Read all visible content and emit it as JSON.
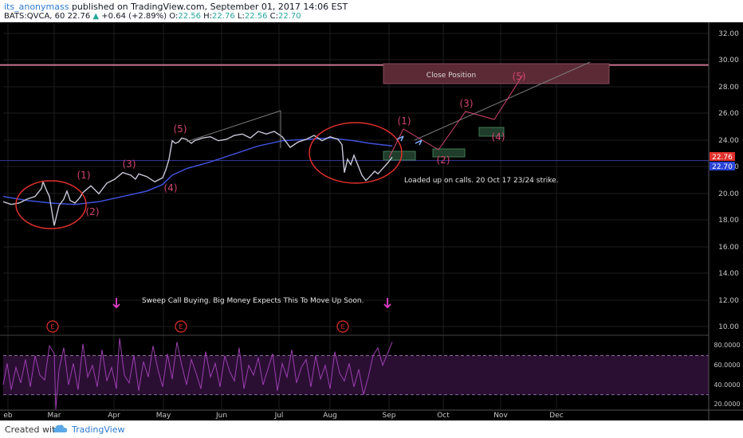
{
  "header": {
    "author": "its_anonymass",
    "published": "published on TradingView.com, September 01, 2017 14:06 EST",
    "symbol": "BATS:QVCA, 60",
    "last": "22.76",
    "change": "+0.64 (+2.89%)",
    "open_label": "O:",
    "open": "22.56",
    "high_label": "H:",
    "high": "22.76",
    "low_label": "L:",
    "low": "22.56",
    "close_label": "C:",
    "close": "22.70"
  },
  "footer": {
    "created_with": "Created with",
    "brand": "TradingView"
  },
  "colors": {
    "background": "#000000",
    "grid": "#1e1e1e",
    "axis_text": "#c8c8c8",
    "ma": "#3f51d9",
    "annotation": "#e0302c",
    "wave": "#d1446f",
    "rsi": "#9c3fb0",
    "resistance": "#c9738f",
    "support": "#3a3aa0",
    "projection": "#7a7a7a",
    "arrow_blue": "#7fb2ff",
    "marker": "#e040c8"
  },
  "chart_data": {
    "type": "line",
    "symbol": "BATS:QVCA",
    "interval": "60",
    "y_ticks": [
      "32.00",
      "30.00",
      "28.00",
      "26.00",
      "24.00",
      "22.00",
      "20.00",
      "18.00",
      "16.00",
      "14.00",
      "12.00",
      "10.00"
    ],
    "ylim": [
      9.4,
      32.8
    ],
    "x_ticks": [
      "eb",
      "Mar",
      "Apr",
      "May",
      "Jun",
      "Jul",
      "Aug",
      "Sep",
      "Oct",
      "Nov",
      "Dec"
    ],
    "price_labels": {
      "last": "22.76",
      "close": "22.70"
    },
    "resistance_level": 29.7,
    "support_level": 22.5,
    "series": [
      {
        "name": "price",
        "x": [
          0,
          10,
          20,
          30,
          40,
          48,
          50,
          54,
          58,
          64,
          70,
          76,
          80,
          84,
          90,
          96,
          100,
          110,
          120,
          130,
          140,
          150,
          160,
          166,
          170,
          180,
          190,
          200,
          204,
          208,
          212,
          216,
          220,
          224,
          230,
          236,
          240,
          250,
          260,
          270,
          280,
          290,
          300,
          310,
          320,
          330,
          340,
          350,
          360,
          370,
          380,
          390,
          400,
          410,
          420,
          425,
          428,
          432,
          436,
          440,
          446,
          450,
          455,
          460,
          466,
          470,
          476,
          482,
          488
        ],
        "values": [
          19.4,
          19.2,
          19.3,
          19.6,
          19.8,
          20.4,
          20.9,
          20.3,
          19.8,
          17.6,
          19.1,
          19.6,
          20.2,
          19.5,
          19.3,
          19.7,
          20.1,
          20.6,
          20.0,
          20.8,
          21.1,
          21.6,
          21.4,
          21.1,
          21.5,
          21.3,
          20.9,
          21.2,
          21.8,
          22.6,
          24.0,
          23.8,
          23.9,
          24.2,
          24.1,
          23.8,
          24.0,
          24.2,
          24.3,
          24.0,
          24.1,
          24.4,
          24.5,
          24.2,
          24.7,
          24.5,
          24.7,
          24.3,
          23.5,
          23.9,
          24.1,
          24.4,
          24.0,
          24.3,
          24.1,
          23.7,
          21.6,
          22.6,
          22.2,
          22.9,
          22.0,
          21.4,
          21.0,
          21.3,
          21.7,
          21.5,
          21.9,
          22.3,
          22.76
        ]
      },
      {
        "name": "ma",
        "x": [
          0,
          30,
          60,
          90,
          120,
          150,
          180,
          200,
          212,
          230,
          260,
          290,
          320,
          350,
          380,
          410,
          440,
          460,
          488
        ],
        "values": [
          19.8,
          19.5,
          19.3,
          19.2,
          19.4,
          19.8,
          20.2,
          20.7,
          21.4,
          21.9,
          22.4,
          23.0,
          23.6,
          24.0,
          24.1,
          24.2,
          24.0,
          23.8,
          23.6
        ]
      },
      {
        "name": "rsi",
        "x": [
          0,
          5,
          10,
          16,
          22,
          28,
          34,
          40,
          46,
          52,
          58,
          64,
          66,
          70,
          76,
          82,
          88,
          94,
          100,
          106,
          112,
          118,
          124,
          130,
          136,
          142,
          146,
          152,
          158,
          164,
          170,
          176,
          182,
          188,
          194,
          200,
          206,
          212,
          218,
          224,
          230,
          236,
          242,
          248,
          254,
          260,
          266,
          272,
          278,
          284,
          290,
          296,
          302,
          308,
          314,
          320,
          326,
          332,
          338,
          344,
          350,
          356,
          362,
          368,
          374,
          380,
          386,
          392,
          398,
          404,
          410,
          416,
          422,
          428,
          434,
          440,
          446,
          452,
          458,
          464,
          470,
          476,
          482,
          488
        ],
        "values": [
          40,
          62,
          35,
          58,
          42,
          66,
          38,
          70,
          50,
          45,
          80,
          72,
          15,
          55,
          78,
          40,
          62,
          35,
          82,
          48,
          60,
          38,
          76,
          44,
          58,
          36,
          88,
          50,
          42,
          70,
          34,
          64,
          48,
          80,
          56,
          38,
          72,
          46,
          84,
          60,
          40,
          66,
          52,
          36,
          74,
          48,
          62,
          38,
          70,
          54,
          44,
          78,
          36,
          60,
          50,
          68,
          40,
          56,
          72,
          34,
          62,
          48,
          76,
          42,
          58,
          66,
          38,
          70,
          46,
          60,
          36,
          74,
          52,
          44,
          62,
          38,
          56,
          30,
          48,
          70,
          78,
          60,
          72,
          84
        ]
      }
    ],
    "annotations": {
      "left_waves": [
        "(1)",
        "(2)",
        "(3)",
        "(4)",
        "(5)"
      ],
      "right_waves": [
        "(1)",
        "(2)",
        "(3)",
        "(4)",
        "(5)"
      ],
      "close_position": "Close Position",
      "calls_note": "Loaded up on calls. 20 Oct 17 23/24 strike.",
      "sweep_note": "Sweep Call Buying. Big Money Expects This To Move Up Soon.",
      "earnings_marker": "E"
    },
    "rsi_pane": {
      "y_ticks": [
        "80.0000",
        "60.0000",
        "40.0000",
        "20.0000"
      ],
      "ylim": [
        15,
        90
      ],
      "upper_band": 70,
      "lower_band": 30
    }
  }
}
